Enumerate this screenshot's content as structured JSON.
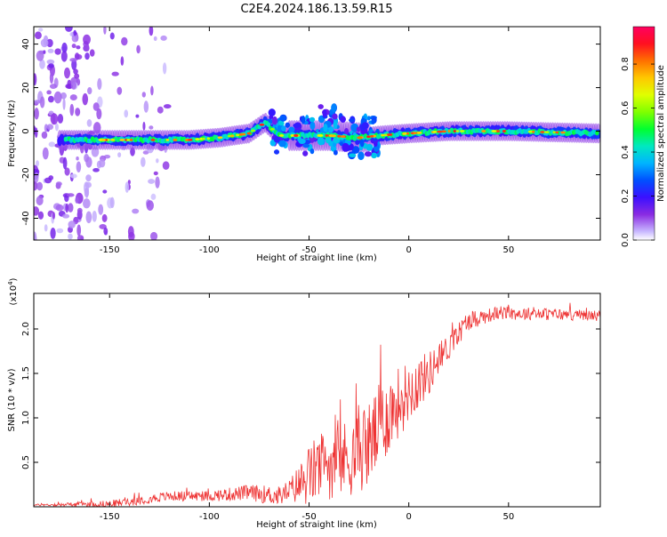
{
  "title": "C2E4.2024.186.13.59.R15",
  "chart_data": [
    {
      "type": "heatmap",
      "xlabel": "Height of straight line (km)",
      "ylabel": "Frequency (Hz)",
      "xlim": [
        -188,
        96
      ],
      "ylim": [
        -50,
        48
      ],
      "xticks": [
        -150,
        -100,
        -50,
        0,
        50
      ],
      "xtick_labels": [
        "-150",
        "-100",
        "-50",
        "0",
        "50"
      ],
      "yticks": [
        -40,
        -20,
        0,
        20,
        40
      ],
      "ytick_labels": [
        "-40",
        "-20",
        "0",
        "20",
        "40"
      ],
      "colorbar": {
        "label": "Normalized spectral amplitude",
        "range": [
          0,
          0.97
        ],
        "ticks": [
          0.0,
          0.2,
          0.4,
          0.6,
          0.8
        ],
        "tick_labels": [
          "0.0",
          "0.2",
          "0.4",
          "0.6",
          "0.8"
        ]
      },
      "band_centerline": [
        {
          "x": -170,
          "y": -4
        },
        {
          "x": -140,
          "y": -4
        },
        {
          "x": -110,
          "y": -4
        },
        {
          "x": -95,
          "y": -3
        },
        {
          "x": -80,
          "y": -1
        },
        {
          "x": -72,
          "y": 4
        },
        {
          "x": -65,
          "y": -2
        },
        {
          "x": -50,
          "y": -2
        },
        {
          "x": -40,
          "y": -2
        },
        {
          "x": -25,
          "y": -3
        },
        {
          "x": -15,
          "y": -2
        },
        {
          "x": 0,
          "y": -1
        },
        {
          "x": 20,
          "y": 0
        },
        {
          "x": 50,
          "y": 0
        },
        {
          "x": 95,
          "y": -1
        }
      ],
      "grid": false
    },
    {
      "type": "line",
      "xlabel": "Height of straight line (km)",
      "ylabel": "SNR (10 * v/v)",
      "multiplier": "(x10",
      "multiplier_exp": "4",
      "multiplier_close": ")",
      "xlim": [
        -188,
        96
      ],
      "ylim": [
        0,
        2.4
      ],
      "xticks": [
        -150,
        -100,
        -50,
        0,
        50
      ],
      "xtick_labels": [
        "-150",
        "-100",
        "-50",
        "0",
        "50"
      ],
      "yticks": [
        0.5,
        1.0,
        1.5,
        2.0
      ],
      "ytick_labels": [
        "0.5",
        "1.0",
        "1.5",
        "2.0"
      ],
      "series": [
        {
          "color": "#ee3333",
          "trend": [
            {
              "x": -188,
              "y": 0.02
            },
            {
              "x": -150,
              "y": 0.03
            },
            {
              "x": -140,
              "y": 0.06
            },
            {
              "x": -120,
              "y": 0.12
            },
            {
              "x": -100,
              "y": 0.12
            },
            {
              "x": -80,
              "y": 0.16
            },
            {
              "x": -65,
              "y": 0.12
            },
            {
              "x": -55,
              "y": 0.25
            },
            {
              "x": -45,
              "y": 0.45
            },
            {
              "x": -30,
              "y": 0.55
            },
            {
              "x": -20,
              "y": 0.7
            },
            {
              "x": -10,
              "y": 1.05
            },
            {
              "x": 0,
              "y": 1.3
            },
            {
              "x": 10,
              "y": 1.5
            },
            {
              "x": 20,
              "y": 1.8
            },
            {
              "x": 30,
              "y": 2.1
            },
            {
              "x": 45,
              "y": 2.18
            },
            {
              "x": 96,
              "y": 2.15
            }
          ],
          "noise_amplitude": [
            {
              "x": -188,
              "y": 0.01
            },
            {
              "x": -140,
              "y": 0.05
            },
            {
              "x": -100,
              "y": 0.06
            },
            {
              "x": -60,
              "y": 0.12
            },
            {
              "x": -50,
              "y": 0.35
            },
            {
              "x": -30,
              "y": 0.45
            },
            {
              "x": -15,
              "y": 0.5
            },
            {
              "x": 0,
              "y": 0.35
            },
            {
              "x": 20,
              "y": 0.15
            },
            {
              "x": 40,
              "y": 0.08
            },
            {
              "x": 96,
              "y": 0.06
            }
          ]
        }
      ],
      "grid": false
    }
  ]
}
